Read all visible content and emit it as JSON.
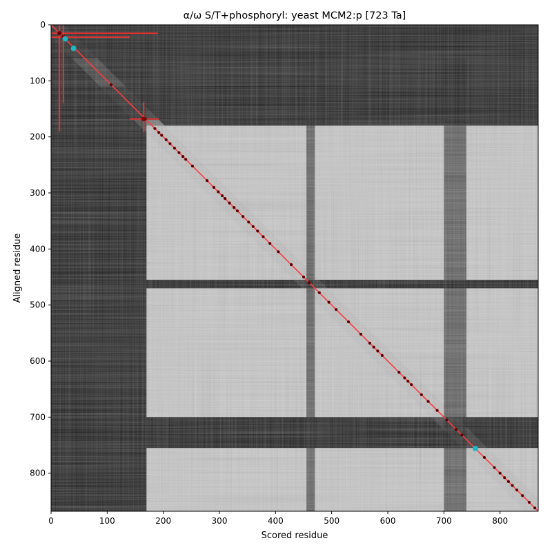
{
  "chart_data": {
    "type": "heatmap",
    "title": "α/ω S/T+phosphoryl: yeast MCM2:p [723 Ta]",
    "xlabel": "Scored residue",
    "ylabel": "Aligned residue",
    "xlim": [
      0,
      868
    ],
    "ylim": [
      868,
      0
    ],
    "xticks": [
      0,
      100,
      200,
      300,
      400,
      500,
      600,
      700,
      800
    ],
    "yticks": [
      0,
      100,
      200,
      300,
      400,
      500,
      600,
      700,
      800
    ],
    "colormap": "grayscale",
    "grid": false,
    "diagonal": {
      "from": [
        0,
        0
      ],
      "to": [
        868,
        868
      ],
      "color": "#ff3b3b"
    },
    "light_blocks": [
      {
        "x": [
          170,
          868
        ],
        "y": [
          180,
          455
        ]
      },
      {
        "x": [
          170,
          868
        ],
        "y": [
          470,
          700
        ]
      },
      {
        "x": [
          170,
          868
        ],
        "y": [
          755,
          868
        ]
      }
    ],
    "dark_bands_rows": [
      [
        0,
        60
      ],
      [
        110,
        170
      ],
      [
        455,
        470
      ],
      [
        700,
        755
      ]
    ],
    "dark_bands_cols": [
      [
        0,
        170
      ],
      [
        455,
        470
      ],
      [
        700,
        740
      ]
    ],
    "crosshairs": [
      {
        "x": 15,
        "y": 15,
        "x_extent": [
          0,
          190
        ],
        "y_extent": [
          0,
          190
        ],
        "color": "#e63232"
      },
      {
        "x": 22,
        "y": 22,
        "x_extent": [
          0,
          140
        ],
        "y_extent": [
          0,
          140
        ],
        "color": "#e63232"
      },
      {
        "x": 165,
        "y": 168,
        "x_extent": [
          140,
          192
        ],
        "y_extent": [
          138,
          192
        ],
        "color": "#e63232"
      }
    ],
    "highlight_points": [
      {
        "x": 25,
        "y": 25,
        "color": "#1fb6c4"
      },
      {
        "x": 40,
        "y": 42,
        "color": "#1fb6c4"
      },
      {
        "x": 756,
        "y": 756,
        "color": "#1fb6c4"
      }
    ],
    "diagonal_points": [
      15,
      107,
      168,
      185,
      192,
      197,
      205,
      212,
      220,
      228,
      235,
      240,
      252,
      278,
      290,
      298,
      305,
      310,
      318,
      326,
      332,
      342,
      352,
      360,
      368,
      378,
      390,
      405,
      428,
      450,
      460,
      478,
      495,
      508,
      530,
      552,
      568,
      575,
      582,
      590,
      620,
      630,
      636,
      642,
      660,
      672,
      688,
      705,
      722,
      732,
      772,
      790,
      800,
      808,
      815,
      822,
      830,
      840,
      852,
      862
    ]
  }
}
